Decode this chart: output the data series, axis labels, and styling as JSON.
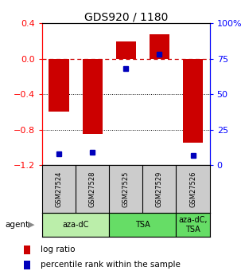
{
  "title": "GDS920 / 1180",
  "samples": [
    "GSM27524",
    "GSM27528",
    "GSM27525",
    "GSM27529",
    "GSM27526"
  ],
  "log_ratios": [
    -0.6,
    -0.85,
    0.2,
    0.28,
    -0.95
  ],
  "percentile_ranks": [
    8,
    9,
    68,
    78,
    7
  ],
  "agent_groups": [
    {
      "label": "aza-dC",
      "span": [
        0,
        2
      ],
      "color": "#bbeeaa"
    },
    {
      "label": "TSA",
      "span": [
        2,
        4
      ],
      "color": "#66dd66"
    },
    {
      "label": "aza-dC,\nTSA",
      "span": [
        4,
        5
      ],
      "color": "#66dd66"
    }
  ],
  "ylim_left": [
    -1.2,
    0.4
  ],
  "ylim_right": [
    0,
    100
  ],
  "bar_color": "#cc0000",
  "dot_color": "#0000bb",
  "dashed_line_color": "#cc0000",
  "grid_color": "#000000",
  "bar_width": 0.6,
  "yticks_left": [
    0.4,
    0.0,
    -0.4,
    -0.8,
    -1.2
  ],
  "yticks_right": [
    100,
    75,
    50,
    25,
    0
  ],
  "ytick_labels_right": [
    "100%",
    "75",
    "50",
    "25",
    "0"
  ],
  "legend_items": [
    {
      "color": "#cc0000",
      "label": "log ratio"
    },
    {
      "color": "#0000bb",
      "label": "percentile rank within the sample"
    }
  ],
  "sample_box_color": "#cccccc",
  "fig_bg": "#ffffff"
}
